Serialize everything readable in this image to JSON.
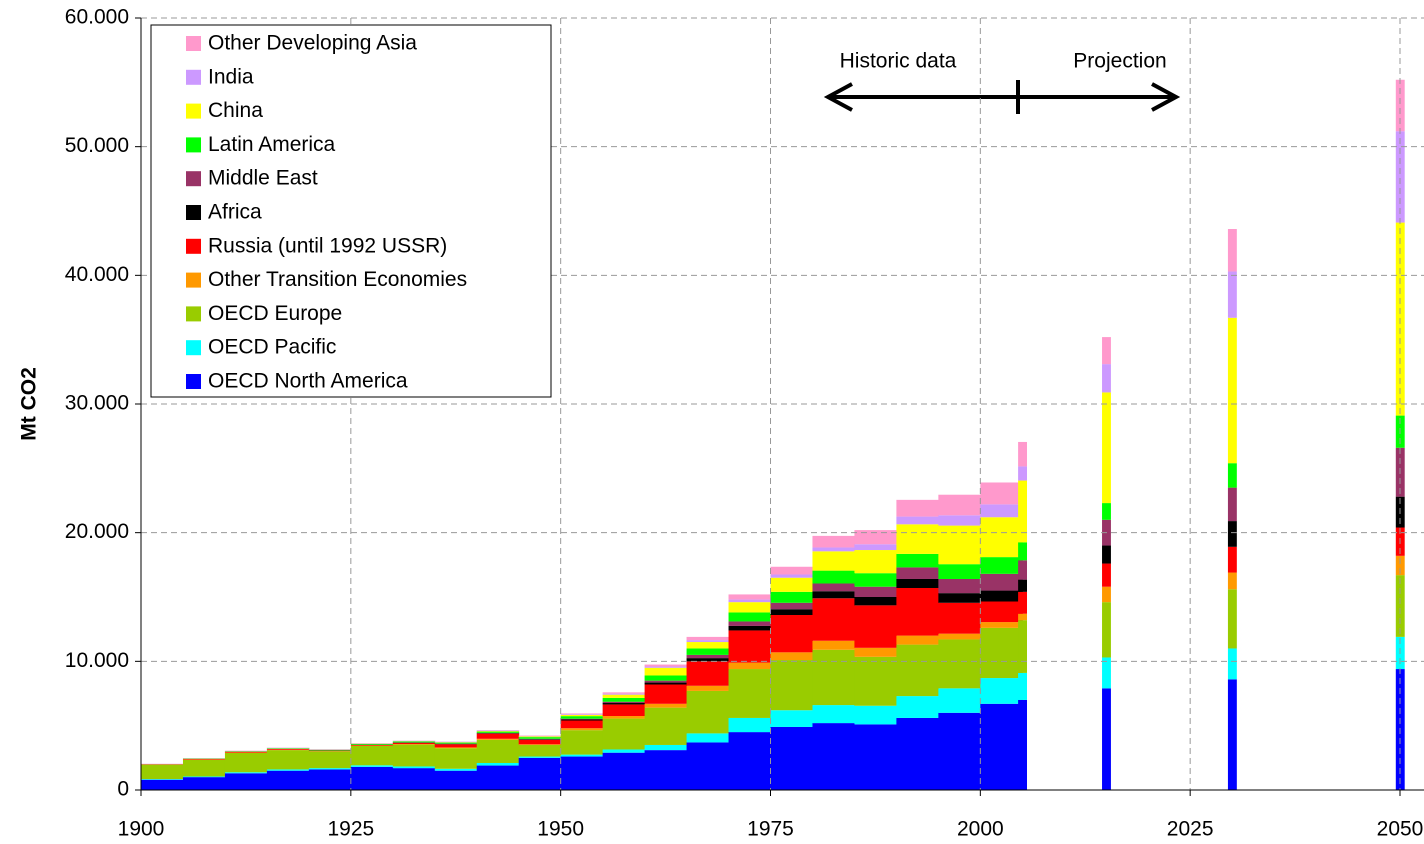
{
  "chart_data": {
    "type": "stacked_bar",
    "y_label": "Mt CO2",
    "annotations": [
      "Historic data",
      "Projection"
    ],
    "x": [
      1900,
      1905,
      1910,
      1915,
      1920,
      1925,
      1930,
      1935,
      1940,
      1945,
      1950,
      1955,
      1960,
      1965,
      1970,
      1975,
      1980,
      1985,
      1990,
      1995,
      2000,
      2005,
      2015,
      2030,
      2050
    ],
    "series": [
      {
        "name": "OECD North America",
        "color": "#0000ff",
        "values": [
          800,
          1000,
          1300,
          1500,
          1600,
          1800,
          1700,
          1500,
          1900,
          2500,
          2600,
          2900,
          3100,
          3700,
          4500,
          4900,
          5200,
          5100,
          5600,
          6000,
          6700,
          7000,
          7900,
          8600,
          9400
        ]
      },
      {
        "name": "OECD Pacific",
        "color": "#00ffff",
        "values": [
          50,
          50,
          80,
          100,
          100,
          120,
          130,
          150,
          200,
          100,
          150,
          250,
          400,
          700,
          1100,
          1300,
          1400,
          1450,
          1700,
          1900,
          2000,
          2100,
          2400,
          2400,
          2500
        ]
      },
      {
        "name": "OECD Europe",
        "color": "#99cc00",
        "values": [
          1100,
          1300,
          1500,
          1500,
          1300,
          1500,
          1700,
          1600,
          1800,
          900,
          1900,
          2400,
          2900,
          3300,
          3800,
          3900,
          4300,
          3800,
          4000,
          3800,
          3900,
          4100,
          4300,
          4600,
          4800
        ]
      },
      {
        "name": "Other Transition Economies",
        "color": "#ff9900",
        "values": [
          20,
          20,
          30,
          30,
          20,
          30,
          40,
          60,
          80,
          50,
          150,
          200,
          300,
          400,
          500,
          600,
          700,
          700,
          700,
          450,
          450,
          500,
          1200,
          1300,
          1500
        ]
      },
      {
        "name": "Russia (until 1992 USSR)",
        "color": "#ff0000",
        "values": [
          30,
          50,
          60,
          60,
          40,
          50,
          100,
          250,
          400,
          350,
          600,
          900,
          1500,
          1900,
          2500,
          2900,
          3300,
          3300,
          3700,
          2400,
          1600,
          1700,
          1800,
          2000,
          2200
        ]
      },
      {
        "name": "Africa",
        "color": "#000000",
        "values": [
          5,
          5,
          10,
          10,
          10,
          15,
          20,
          30,
          40,
          50,
          80,
          110,
          150,
          250,
          350,
          450,
          550,
          650,
          700,
          750,
          850,
          950,
          1400,
          2000,
          2400
        ]
      },
      {
        "name": "Middle East",
        "color": "#993366",
        "values": [
          1,
          1,
          2,
          3,
          3,
          5,
          10,
          15,
          20,
          30,
          60,
          100,
          150,
          250,
          350,
          500,
          600,
          800,
          900,
          1100,
          1300,
          1500,
          2000,
          2600,
          3800
        ]
      },
      {
        "name": "Latin America",
        "color": "#00ff00",
        "values": [
          10,
          20,
          30,
          40,
          50,
          60,
          70,
          80,
          100,
          130,
          200,
          300,
          400,
          500,
          700,
          850,
          1000,
          1050,
          1050,
          1150,
          1300,
          1400,
          1300,
          1900,
          2500
        ]
      },
      {
        "name": "China",
        "color": "#ffff00",
        "values": [
          5,
          5,
          10,
          10,
          10,
          20,
          20,
          30,
          40,
          60,
          100,
          250,
          600,
          500,
          800,
          1100,
          1500,
          1800,
          2300,
          3000,
          3100,
          4800,
          8600,
          11300,
          15000
        ]
      },
      {
        "name": "India",
        "color": "#cc99ff",
        "values": [
          10,
          15,
          20,
          25,
          30,
          30,
          35,
          35,
          40,
          40,
          60,
          80,
          100,
          150,
          200,
          250,
          300,
          450,
          600,
          800,
          1000,
          1100,
          2200,
          3600,
          7100
        ]
      },
      {
        "name": "Other Developing Asia",
        "color": "#ff99cc",
        "values": [
          10,
          10,
          20,
          20,
          20,
          20,
          20,
          20,
          30,
          30,
          50,
          100,
          150,
          250,
          400,
          600,
          900,
          1100,
          1300,
          1600,
          1700,
          1900,
          2100,
          3300,
          4000
        ]
      }
    ],
    "xlim": [
      1900,
      2050
    ],
    "xticks": [
      1900,
      1925,
      1950,
      1975,
      2000,
      2025,
      2050
    ],
    "ylim": [
      0,
      60000
    ],
    "yticks": [
      0,
      {
        "value": 10000,
        "label": "10.000"
      },
      {
        "value": 20000,
        "label": "20.000"
      },
      {
        "value": 30000,
        "label": "30.000"
      },
      {
        "value": 40000,
        "label": "40.000"
      },
      {
        "value": 50000,
        "label": "50.000"
      },
      {
        "value": 60000,
        "label": "60.000"
      }
    ],
    "grid": true,
    "legend": "top-left"
  }
}
